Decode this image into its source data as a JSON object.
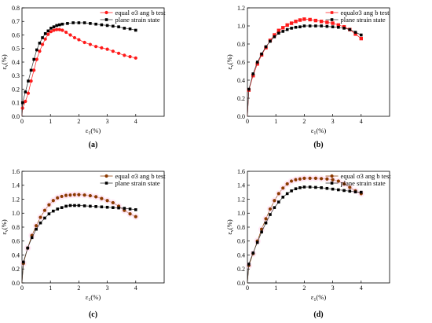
{
  "chart_data": [
    {
      "type": "line",
      "caption": "(a)",
      "xlabel": "ε1(%)",
      "ylabel": "εv(%)",
      "xlim": [
        0,
        5
      ],
      "ylim": [
        0,
        0.8
      ],
      "xticks": [
        0,
        1,
        2,
        3,
        4
      ],
      "yticks": [
        0,
        0.1,
        0.2,
        0.3,
        0.4,
        0.5,
        0.6,
        0.7,
        0.8
      ],
      "legend_position": "top-right",
      "series": [
        {
          "name": "equal σ3 ang b test",
          "color": "#ff1a1a",
          "marker": "circle",
          "x": [
            0.02,
            0.12,
            0.22,
            0.32,
            0.42,
            0.52,
            0.62,
            0.72,
            0.82,
            0.92,
            1.02,
            1.12,
            1.22,
            1.32,
            1.42,
            1.55,
            1.7,
            1.85,
            2.0,
            2.2,
            2.4,
            2.6,
            2.8,
            3.0,
            3.2,
            3.4,
            3.6,
            3.8,
            4.0
          ],
          "y": [
            0.06,
            0.11,
            0.17,
            0.26,
            0.34,
            0.42,
            0.48,
            0.53,
            0.57,
            0.605,
            0.625,
            0.635,
            0.64,
            0.64,
            0.635,
            0.62,
            0.6,
            0.58,
            0.565,
            0.545,
            0.53,
            0.515,
            0.505,
            0.495,
            0.48,
            0.465,
            0.45,
            0.44,
            0.43
          ]
        },
        {
          "name": "plane strain state",
          "color": "#000000",
          "marker": "square",
          "x": [
            0.02,
            0.12,
            0.22,
            0.32,
            0.42,
            0.52,
            0.62,
            0.72,
            0.82,
            0.92,
            1.02,
            1.12,
            1.22,
            1.32,
            1.42,
            1.6,
            1.8,
            2.0,
            2.2,
            2.4,
            2.6,
            2.8,
            3.0,
            3.2,
            3.4,
            3.6,
            3.8,
            4.0
          ],
          "y": [
            0.1,
            0.18,
            0.26,
            0.34,
            0.42,
            0.49,
            0.54,
            0.58,
            0.61,
            0.63,
            0.65,
            0.66,
            0.67,
            0.675,
            0.68,
            0.685,
            0.69,
            0.69,
            0.69,
            0.685,
            0.68,
            0.675,
            0.67,
            0.665,
            0.66,
            0.65,
            0.645,
            0.635
          ]
        }
      ]
    },
    {
      "type": "line",
      "caption": "(b)",
      "xlabel": "ε1(%)",
      "ylabel": "εv(%)",
      "xlim": [
        0,
        5
      ],
      "ylim": [
        0,
        1.2
      ],
      "xticks": [
        0,
        1,
        2,
        3,
        4
      ],
      "yticks": [
        0,
        0.2,
        0.4,
        0.6,
        0.8,
        1.0,
        1.2
      ],
      "legend_position": "top-right",
      "series": [
        {
          "name": "equalσ3 ang b test",
          "color": "#ff1a1a",
          "marker": "square",
          "x": [
            0.05,
            0.2,
            0.35,
            0.5,
            0.65,
            0.8,
            0.95,
            1.1,
            1.25,
            1.4,
            1.55,
            1.7,
            1.85,
            2.0,
            2.2,
            2.4,
            2.6,
            2.8,
            3.0,
            3.2,
            3.4,
            3.6,
            3.8,
            4.0
          ],
          "y": [
            0.29,
            0.45,
            0.58,
            0.68,
            0.76,
            0.84,
            0.9,
            0.95,
            0.98,
            1.01,
            1.03,
            1.05,
            1.065,
            1.075,
            1.07,
            1.06,
            1.05,
            1.04,
            1.03,
            1.01,
            0.99,
            0.96,
            0.91,
            0.86
          ]
        },
        {
          "name": "plane strain state",
          "color": "#000000",
          "marker": "square",
          "x": [
            0.05,
            0.2,
            0.35,
            0.5,
            0.65,
            0.8,
            0.95,
            1.1,
            1.25,
            1.4,
            1.55,
            1.7,
            1.85,
            2.0,
            2.2,
            2.4,
            2.6,
            2.8,
            3.0,
            3.2,
            3.4,
            3.6,
            3.8,
            4.0
          ],
          "y": [
            0.3,
            0.47,
            0.6,
            0.69,
            0.77,
            0.83,
            0.88,
            0.92,
            0.94,
            0.96,
            0.975,
            0.985,
            0.99,
            1.0,
            1.0,
            1.0,
            1.0,
            0.995,
            0.99,
            0.985,
            0.975,
            0.96,
            0.93,
            0.9
          ]
        }
      ]
    },
    {
      "type": "line",
      "caption": "(c)",
      "xlabel": "ε1(%)",
      "ylabel": "εv(%)",
      "xlim": [
        0,
        5
      ],
      "ylim": [
        0,
        1.6
      ],
      "xticks": [
        0,
        1,
        2,
        3,
        4
      ],
      "yticks": [
        0,
        0.2,
        0.4,
        0.6,
        0.8,
        1.0,
        1.2,
        1.4,
        1.6
      ],
      "legend_position": "top-right",
      "series": [
        {
          "name": "equal σ3 ang b test",
          "color": "#8b3a00",
          "marker": "circle",
          "x": [
            0.05,
            0.2,
            0.35,
            0.5,
            0.65,
            0.8,
            0.95,
            1.1,
            1.25,
            1.4,
            1.55,
            1.7,
            1.85,
            2.0,
            2.2,
            2.4,
            2.6,
            2.8,
            3.0,
            3.2,
            3.4,
            3.6,
            3.8,
            4.0
          ],
          "y": [
            0.28,
            0.5,
            0.68,
            0.82,
            0.94,
            1.04,
            1.12,
            1.18,
            1.22,
            1.24,
            1.255,
            1.26,
            1.265,
            1.265,
            1.26,
            1.25,
            1.235,
            1.21,
            1.18,
            1.15,
            1.1,
            1.04,
            0.99,
            0.95
          ]
        },
        {
          "name": "plane strain state",
          "color": "#000000",
          "marker": "square",
          "x": [
            0.05,
            0.2,
            0.35,
            0.5,
            0.65,
            0.8,
            0.95,
            1.1,
            1.25,
            1.4,
            1.55,
            1.7,
            1.85,
            2.0,
            2.2,
            2.4,
            2.6,
            2.8,
            3.0,
            3.2,
            3.4,
            3.6,
            3.8,
            4.0
          ],
          "y": [
            0.3,
            0.5,
            0.65,
            0.77,
            0.86,
            0.93,
            0.99,
            1.03,
            1.06,
            1.08,
            1.1,
            1.11,
            1.11,
            1.11,
            1.105,
            1.1,
            1.095,
            1.09,
            1.085,
            1.08,
            1.075,
            1.07,
            1.06,
            1.05
          ]
        }
      ]
    },
    {
      "type": "line",
      "caption": "(d)",
      "xlabel": "ε1(%)",
      "ylabel": "εv(%)",
      "xlim": [
        0,
        5
      ],
      "ylim": [
        0,
        1.6
      ],
      "xticks": [
        0,
        1,
        2,
        3,
        4
      ],
      "yticks": [
        0,
        0.2,
        0.4,
        0.6,
        0.8,
        1.0,
        1.2,
        1.4,
        1.6
      ],
      "legend_position": "top-right",
      "series": [
        {
          "name": "equal σ3 ang b test",
          "color": "#8b3a00",
          "marker": "circle",
          "x": [
            0.05,
            0.2,
            0.35,
            0.5,
            0.65,
            0.8,
            0.95,
            1.1,
            1.25,
            1.4,
            1.55,
            1.7,
            1.85,
            2.0,
            2.2,
            2.4,
            2.6,
            2.8,
            3.0,
            3.2,
            3.4,
            3.6,
            3.8,
            4.0
          ],
          "y": [
            0.25,
            0.42,
            0.6,
            0.77,
            0.92,
            1.06,
            1.18,
            1.28,
            1.36,
            1.42,
            1.46,
            1.48,
            1.49,
            1.5,
            1.5,
            1.5,
            1.495,
            1.49,
            1.48,
            1.46,
            1.42,
            1.37,
            1.32,
            1.28
          ]
        },
        {
          "name": "plane strain state",
          "color": "#000000",
          "marker": "square",
          "x": [
            0.05,
            0.2,
            0.35,
            0.5,
            0.65,
            0.8,
            0.95,
            1.1,
            1.25,
            1.4,
            1.55,
            1.7,
            1.85,
            2.0,
            2.2,
            2.4,
            2.6,
            2.8,
            3.0,
            3.2,
            3.4,
            3.6,
            3.8,
            4.0
          ],
          "y": [
            0.27,
            0.43,
            0.58,
            0.73,
            0.86,
            0.98,
            1.08,
            1.16,
            1.23,
            1.28,
            1.32,
            1.35,
            1.365,
            1.375,
            1.375,
            1.37,
            1.365,
            1.355,
            1.345,
            1.335,
            1.325,
            1.315,
            1.305,
            1.3
          ]
        }
      ]
    }
  ]
}
